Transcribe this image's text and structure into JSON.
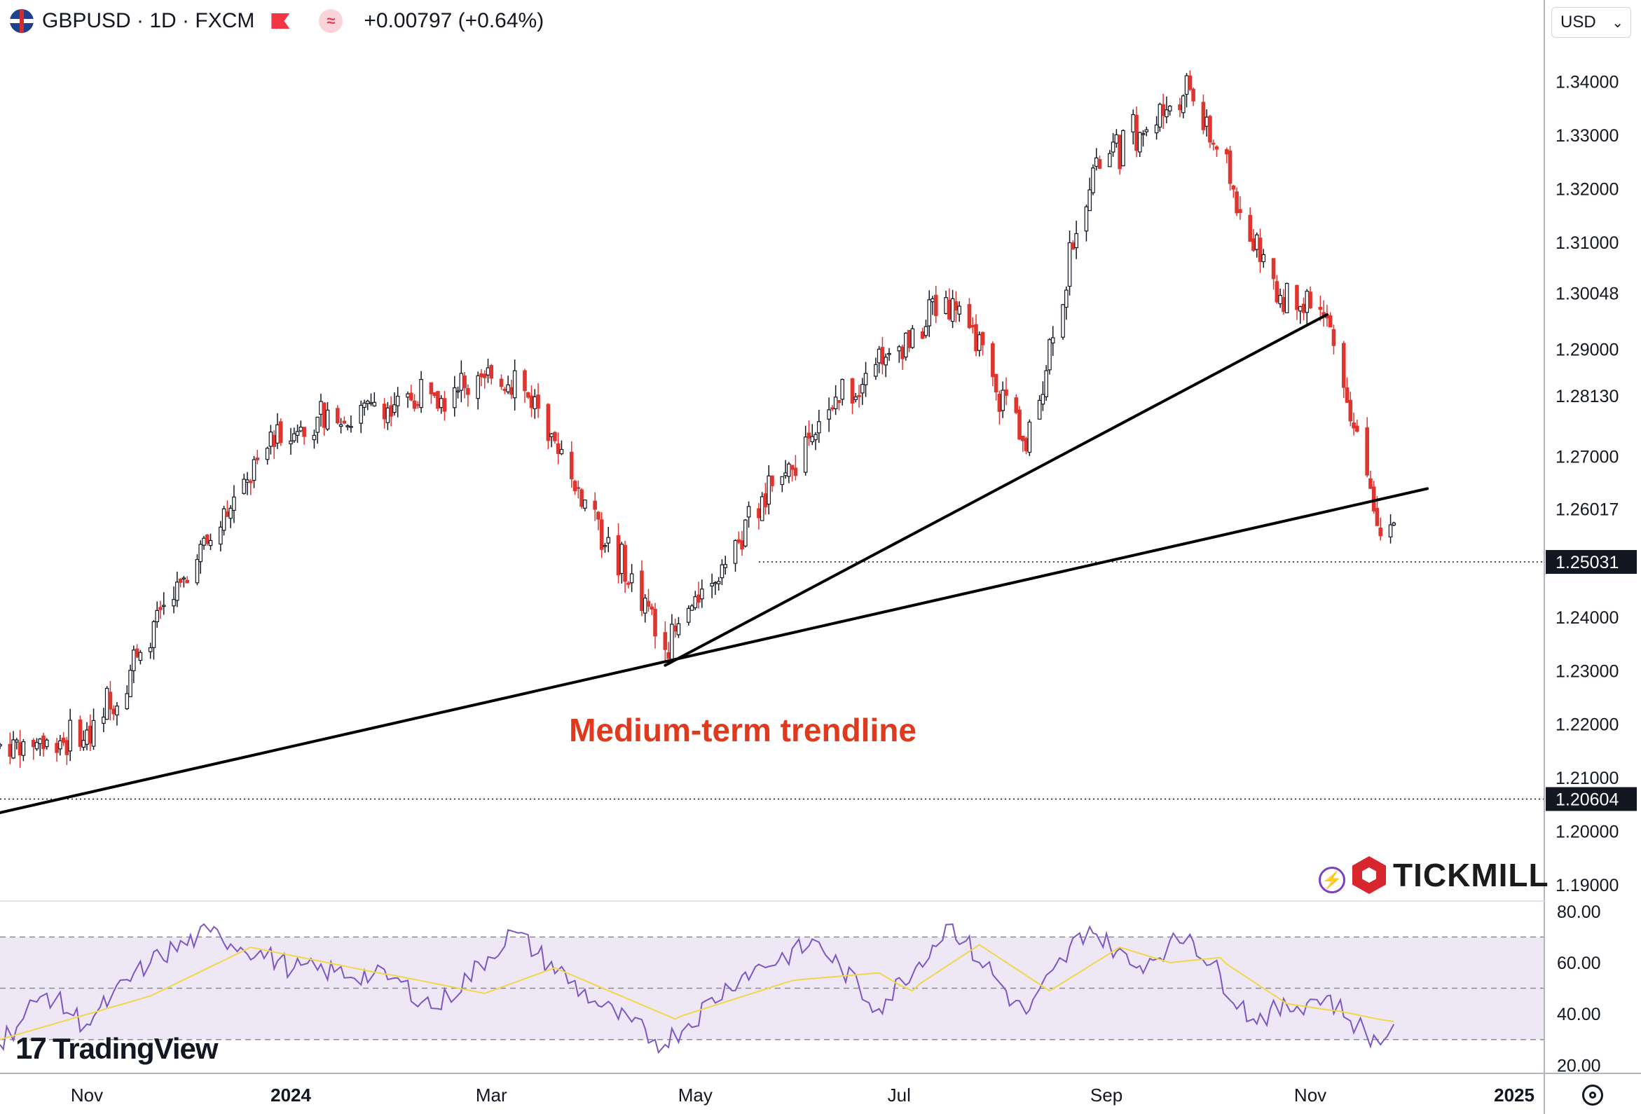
{
  "header": {
    "symbol": "GBPUSD · 1D · FXCM",
    "change": "+0.00797 (+0.64%)",
    "flag_icon": "gbp-usd-flag-icon",
    "wave_icon": "≈"
  },
  "currency_select": {
    "value": "USD",
    "chevron": "⌄"
  },
  "branding": {
    "tradingview": "TradingView",
    "tradingview_logo": "17",
    "tickmill": "TICKMILL",
    "bolt": "⚡"
  },
  "annotation": {
    "text": "Medium-term trendline",
    "color": "#e03a1e"
  },
  "colors": {
    "up": "#131722",
    "down": "#e0342f",
    "rsi": "#7e57c2",
    "rsi_ma": "#f0d84a",
    "rsi_band": "#ede7f6"
  },
  "chart_data": [
    {
      "type": "candlestick",
      "title": "GBPUSD · 1D · FXCM",
      "ylim": [
        1.187,
        1.35
      ],
      "y_ticks": [
        "1.19000",
        "1.20000",
        "1.21000",
        "1.22000",
        "1.23000",
        "1.24000",
        "1.26017",
        "1.27000",
        "1.28130",
        "1.29000",
        "1.30048",
        "1.31000",
        "1.32000",
        "1.33000",
        "1.34000"
      ],
      "x_ticks": [
        "Nov",
        "2024",
        "Mar",
        "May",
        "Jul",
        "Sep",
        "Nov",
        "2025"
      ],
      "x_range": [
        "2023-10-06",
        "2025-01-10"
      ],
      "price_labels": [
        "1.25031",
        "1.20604"
      ],
      "horizontal_levels": [
        1.25031,
        1.20604
      ],
      "key_points": [
        {
          "date": "2023-10-06",
          "low": 1.207,
          "high": 1.225
        },
        {
          "date": "2023-11-01",
          "low": 1.21,
          "high": 1.225
        },
        {
          "date": "2023-12-28",
          "low": 1.268,
          "high": 1.282
        },
        {
          "date": "2024-03-08",
          "low": 1.282,
          "high": 1.289
        },
        {
          "date": "2024-04-22",
          "low": 1.23,
          "high": 1.24
        },
        {
          "date": "2024-06-12",
          "low": 1.275,
          "high": 1.286
        },
        {
          "date": "2024-07-17",
          "low": 1.296,
          "high": 1.304
        },
        {
          "date": "2024-08-08",
          "low": 1.267,
          "high": 1.276
        },
        {
          "date": "2024-08-27",
          "low": 1.32,
          "high": 1.326
        },
        {
          "date": "2024-09-26",
          "low": 1.334,
          "high": 1.343
        },
        {
          "date": "2024-10-22",
          "low": 1.296,
          "high": 1.304
        },
        {
          "date": "2024-11-06",
          "low": 1.286,
          "high": 1.305
        },
        {
          "date": "2024-11-22",
          "low": 1.25,
          "high": 1.262
        },
        {
          "date": "2024-11-26",
          "low": 1.25,
          "high": 1.261
        }
      ],
      "trendlines": [
        {
          "from": {
            "date": "2023-10-06",
            "value": 1.2035
          },
          "to": {
            "date": "2024-12-06",
            "value": 1.264
          }
        },
        {
          "from": {
            "date": "2024-04-22",
            "value": 1.231
          },
          "to": {
            "date": "2024-11-06",
            "value": 1.2965
          }
        }
      ]
    },
    {
      "type": "line",
      "title": "RSI",
      "ylim": [
        16.8,
        83.5
      ],
      "y_ticks": [
        "20.00",
        "40.00",
        "60.00",
        "80.00"
      ],
      "bands": [
        30,
        50,
        70
      ],
      "series": [
        {
          "values": [
            {
              "date": "2023-10-06",
              "value": 28
            },
            {
              "date": "2023-10-20",
              "value": 48
            },
            {
              "date": "2023-11-01",
              "value": 36
            },
            {
              "date": "2023-11-20",
              "value": 60
            },
            {
              "date": "2023-12-08",
              "value": 72
            },
            {
              "date": "2024-01-02",
              "value": 58
            },
            {
              "date": "2024-02-01",
              "value": 54
            },
            {
              "date": "2024-02-14",
              "value": 42
            },
            {
              "date": "2024-03-08",
              "value": 72
            },
            {
              "date": "2024-04-01",
              "value": 45
            },
            {
              "date": "2024-04-22",
              "value": 28
            },
            {
              "date": "2024-05-15",
              "value": 55
            },
            {
              "date": "2024-06-07",
              "value": 68
            },
            {
              "date": "2024-06-25",
              "value": 42
            },
            {
              "date": "2024-07-17",
              "value": 75
            },
            {
              "date": "2024-08-08",
              "value": 40
            },
            {
              "date": "2024-08-27",
              "value": 74
            },
            {
              "date": "2024-09-10",
              "value": 58
            },
            {
              "date": "2024-09-26",
              "value": 71
            },
            {
              "date": "2024-10-15",
              "value": 38
            },
            {
              "date": "2024-11-06",
              "value": 47
            },
            {
              "date": "2024-11-22",
              "value": 28
            },
            {
              "date": "2024-11-26",
              "value": 36
            }
          ]
        },
        {
          "values": [
            {
              "date": "2023-10-06",
              "value": 30
            },
            {
              "date": "2023-11-20",
              "value": 47
            },
            {
              "date": "2023-12-20",
              "value": 66
            },
            {
              "date": "2024-02-01",
              "value": 55
            },
            {
              "date": "2024-02-28",
              "value": 48
            },
            {
              "date": "2024-03-20",
              "value": 58
            },
            {
              "date": "2024-04-25",
              "value": 38
            },
            {
              "date": "2024-05-30",
              "value": 53
            },
            {
              "date": "2024-06-25",
              "value": 56
            },
            {
              "date": "2024-07-05",
              "value": 49
            },
            {
              "date": "2024-07-25",
              "value": 67
            },
            {
              "date": "2024-08-15",
              "value": 49
            },
            {
              "date": "2024-09-05",
              "value": 66
            },
            {
              "date": "2024-09-20",
              "value": 60
            },
            {
              "date": "2024-10-05",
              "value": 62
            },
            {
              "date": "2024-10-25",
              "value": 44
            },
            {
              "date": "2024-11-10",
              "value": 41
            },
            {
              "date": "2024-11-26",
              "value": 37
            }
          ]
        }
      ]
    }
  ]
}
